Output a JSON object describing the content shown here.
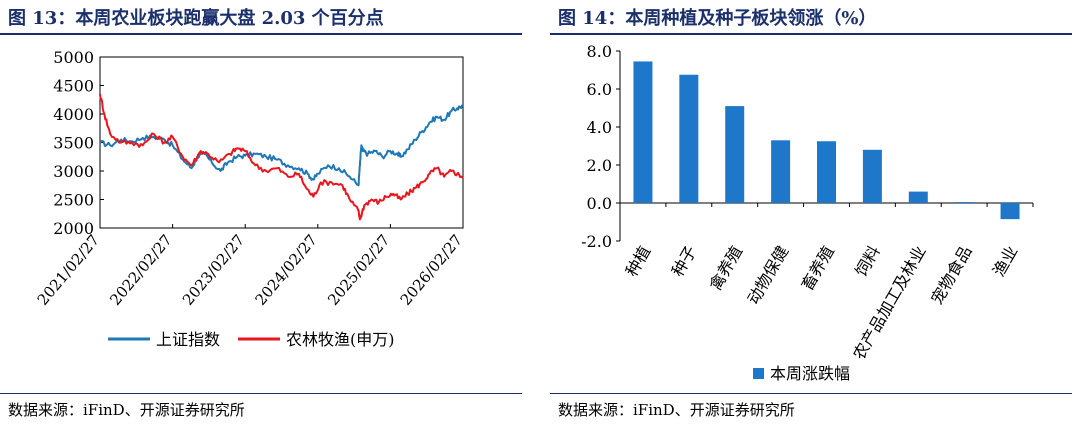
{
  "charts": {
    "left": {
      "title": "图 13：本周农业板块跑赢大盘 2.03 个百分点",
      "source": "数据来源：iFinD、开源证券研究所"
    },
    "right": {
      "title": "图 14：本周种植及种子板块领涨（%）",
      "source": "数据来源：iFinD、开源证券研究所"
    }
  },
  "chart_data": [
    {
      "type": "line",
      "title": "图 13：本周农业板块跑赢大盘 2.03 个百分点",
      "xlabel": "",
      "ylabel": "",
      "ylim": [
        2000,
        5000
      ],
      "yticks": [
        2000,
        2500,
        3000,
        3500,
        4000,
        4500,
        5000
      ],
      "xticks": [
        "2021/02/27",
        "2022/02/27",
        "2023/02/27",
        "2024/02/27",
        "2025/02/27",
        "2026/02/27"
      ],
      "xrange": [
        2021.16,
        2026.16
      ],
      "legend_position": "bottom",
      "series": [
        {
          "name": "上证指数",
          "color": "#1f77b4",
          "x": [
            2021.16,
            2021.3,
            2021.45,
            2021.6,
            2021.75,
            2021.9,
            2022.05,
            2022.16,
            2022.3,
            2022.42,
            2022.5,
            2022.6,
            2022.7,
            2022.82,
            2022.92,
            2023.05,
            2023.16,
            2023.3,
            2023.45,
            2023.6,
            2023.75,
            2023.9,
            2024.02,
            2024.1,
            2024.16,
            2024.3,
            2024.45,
            2024.6,
            2024.72,
            2024.74,
            2024.76,
            2024.78,
            2024.85,
            2024.95,
            2025.05,
            2025.16,
            2025.26,
            2025.3,
            2025.4,
            2025.5,
            2025.6,
            2025.7,
            2025.8,
            2025.9,
            2026.0,
            2026.08,
            2026.16
          ],
          "y": [
            3500,
            3450,
            3550,
            3520,
            3580,
            3600,
            3550,
            3450,
            3200,
            3050,
            3250,
            3300,
            3150,
            3000,
            3150,
            3250,
            3270,
            3300,
            3250,
            3200,
            3100,
            3050,
            2950,
            2850,
            2950,
            3100,
            3050,
            2900,
            2750,
            3100,
            3450,
            3350,
            3300,
            3350,
            3250,
            3350,
            3300,
            3250,
            3380,
            3550,
            3700,
            3850,
            3950,
            3900,
            4050,
            4100,
            4150
          ]
        },
        {
          "name": "农林牧渔(申万)",
          "color": "#e8161d",
          "x": [
            2021.16,
            2021.22,
            2021.3,
            2021.45,
            2021.6,
            2021.75,
            2021.9,
            2022.05,
            2022.16,
            2022.3,
            2022.42,
            2022.55,
            2022.65,
            2022.8,
            2022.95,
            2023.05,
            2023.16,
            2023.3,
            2023.45,
            2023.6,
            2023.75,
            2023.9,
            2024.0,
            2024.1,
            2024.2,
            2024.35,
            2024.5,
            2024.6,
            2024.72,
            2024.74,
            2024.8,
            2024.9,
            2025.0,
            2025.1,
            2025.2,
            2025.3,
            2025.4,
            2025.5,
            2025.6,
            2025.7,
            2025.8,
            2025.9,
            2026.0,
            2026.08,
            2026.16
          ],
          "y": [
            4350,
            4000,
            3650,
            3500,
            3500,
            3450,
            3650,
            3500,
            3600,
            3250,
            3100,
            3350,
            3300,
            3150,
            3300,
            3400,
            3350,
            3100,
            3000,
            3050,
            2900,
            2950,
            2700,
            2550,
            2800,
            2800,
            2750,
            2500,
            2300,
            2150,
            2400,
            2500,
            2450,
            2550,
            2600,
            2500,
            2600,
            2700,
            2800,
            2950,
            3050,
            2900,
            3000,
            2950,
            2900
          ]
        }
      ]
    },
    {
      "type": "bar",
      "title": "图 14：本周种植及种子板块领涨（%）",
      "categories": [
        "种植",
        "种子",
        "禽养殖",
        "动物保健",
        "畜养殖",
        "饲料",
        "农产品加工及林业",
        "宠物食品",
        "渔业"
      ],
      "series": [
        {
          "name": "本周涨跌幅",
          "color": "#1f77c9",
          "values": [
            7.45,
            6.75,
            5.1,
            3.3,
            3.25,
            2.8,
            0.6,
            0.05,
            -0.85
          ]
        }
      ],
      "ylim": [
        -2.0,
        8.0
      ],
      "yticks": [
        "-2.0",
        "0.0",
        "2.0",
        "4.0",
        "6.0",
        "8.0"
      ],
      "legend_position": "bottom"
    }
  ]
}
